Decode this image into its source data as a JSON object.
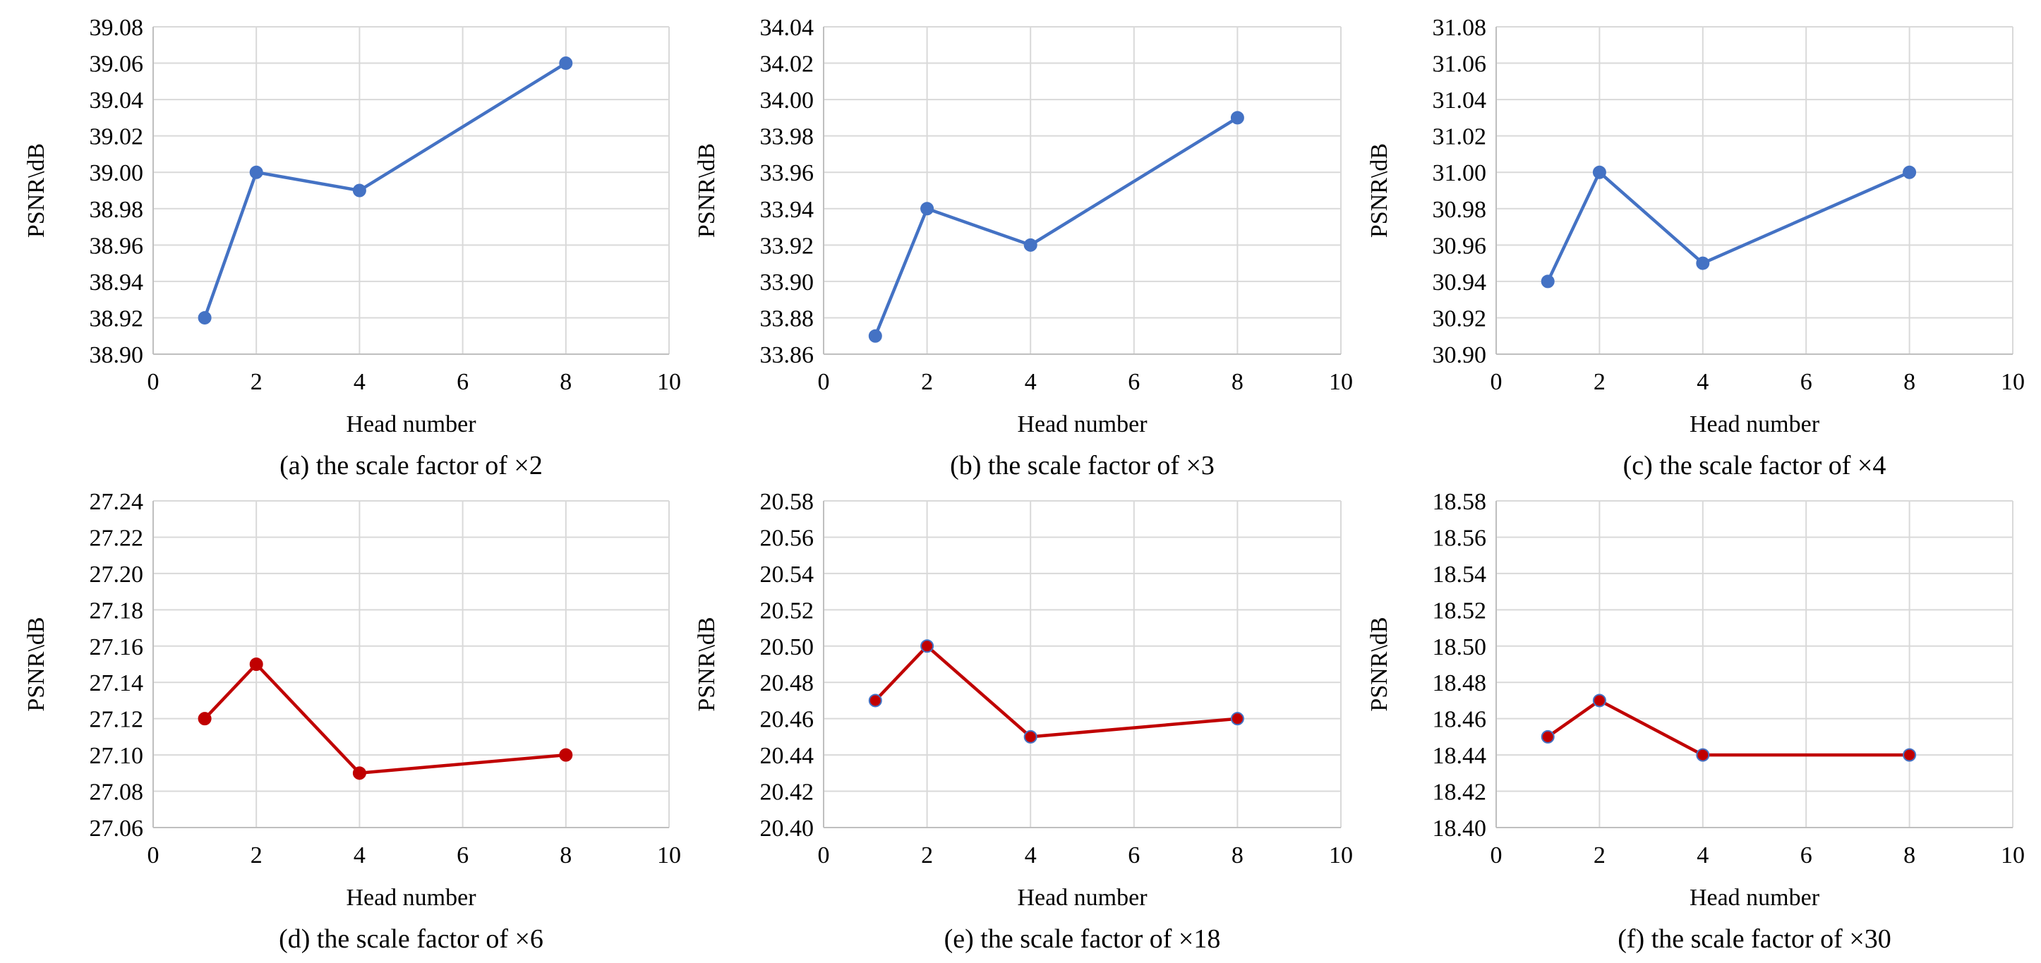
{
  "figure": {
    "background": "#ffffff",
    "panels_layout": "2 rows x 3 columns"
  },
  "chart_data": [
    {
      "type": "line",
      "caption": "(a)  the scale factor of ×2",
      "xlabel": "Head number",
      "ylabel": "PSNR\\dB",
      "xlim": [
        0,
        10
      ],
      "x_ticks": [
        "0",
        "2",
        "4",
        "6",
        "8",
        "10"
      ],
      "ylim": [
        38.9,
        39.08
      ],
      "y_ticks": [
        "38.90",
        "38.92",
        "38.94",
        "38.96",
        "38.98",
        "39.00",
        "39.02",
        "39.04",
        "39.06",
        "39.08"
      ],
      "grid": true,
      "color": "#4472c4",
      "series": [
        {
          "x": [
            1,
            2,
            4,
            8
          ],
          "y": [
            38.92,
            39.0,
            38.99,
            39.06
          ]
        }
      ]
    },
    {
      "type": "line",
      "caption": "(b)  the scale factor of ×3",
      "xlabel": "Head number",
      "ylabel": "PSNR\\dB",
      "xlim": [
        0,
        10
      ],
      "x_ticks": [
        "0",
        "2",
        "4",
        "6",
        "8",
        "10"
      ],
      "ylim": [
        33.86,
        34.04
      ],
      "y_ticks": [
        "33.86",
        "33.88",
        "33.90",
        "33.92",
        "33.94",
        "33.96",
        "33.98",
        "34.00",
        "34.02",
        "34.04"
      ],
      "grid": true,
      "color": "#4472c4",
      "series": [
        {
          "x": [
            1,
            2,
            4,
            8
          ],
          "y": [
            33.87,
            33.94,
            33.92,
            33.99
          ]
        }
      ]
    },
    {
      "type": "line",
      "caption": "(c)  the scale factor of ×4",
      "xlabel": "Head number",
      "ylabel": "PSNR\\dB",
      "xlim": [
        0,
        10
      ],
      "x_ticks": [
        "0",
        "2",
        "4",
        "6",
        "8",
        "10"
      ],
      "ylim": [
        30.9,
        31.08
      ],
      "y_ticks": [
        "30.90",
        "30.92",
        "30.94",
        "30.96",
        "30.98",
        "31.00",
        "31.02",
        "31.04",
        "31.06",
        "31.08"
      ],
      "grid": true,
      "color": "#4472c4",
      "series": [
        {
          "x": [
            1,
            2,
            4,
            8
          ],
          "y": [
            30.94,
            31.0,
            30.95,
            31.0
          ]
        }
      ]
    },
    {
      "type": "line",
      "caption": "(d)  the scale factor of ×6",
      "xlabel": "Head number",
      "ylabel": "PSNR\\dB",
      "xlim": [
        0,
        10
      ],
      "x_ticks": [
        "0",
        "2",
        "4",
        "6",
        "8",
        "10"
      ],
      "ylim": [
        27.06,
        27.24
      ],
      "y_ticks": [
        "27.06",
        "27.08",
        "27.10",
        "27.12",
        "27.14",
        "27.16",
        "27.18",
        "27.20",
        "27.22",
        "27.24"
      ],
      "grid": true,
      "color": "#c00000",
      "series": [
        {
          "x": [
            1,
            2,
            4,
            8
          ],
          "y": [
            27.12,
            27.15,
            27.09,
            27.1
          ]
        }
      ]
    },
    {
      "type": "line",
      "caption": "(e)  the scale factor of ×18",
      "xlabel": "Head number",
      "ylabel": "PSNR\\dB",
      "xlim": [
        0,
        10
      ],
      "x_ticks": [
        "0",
        "2",
        "4",
        "6",
        "8",
        "10"
      ],
      "ylim": [
        20.4,
        20.58
      ],
      "y_ticks": [
        "20.40",
        "20.42",
        "20.44",
        "20.46",
        "20.48",
        "20.50",
        "20.52",
        "20.54",
        "20.56",
        "20.58"
      ],
      "grid": true,
      "color": "#c00000",
      "marker_edge_color": "#4472c4",
      "series": [
        {
          "x": [
            1,
            2,
            4,
            8
          ],
          "y": [
            20.47,
            20.5,
            20.45,
            20.46
          ]
        }
      ]
    },
    {
      "type": "line",
      "caption": "(f)  the scale factor of ×30",
      "xlabel": "Head number",
      "ylabel": "PSNR\\dB",
      "xlim": [
        0,
        10
      ],
      "x_ticks": [
        "0",
        "2",
        "4",
        "6",
        "8",
        "10"
      ],
      "ylim": [
        18.4,
        18.58
      ],
      "y_ticks": [
        "18.40",
        "18.42",
        "18.44",
        "18.46",
        "18.48",
        "18.50",
        "18.52",
        "18.54",
        "18.56",
        "18.58"
      ],
      "grid": true,
      "color": "#c00000",
      "marker_edge_color": "#4472c4",
      "series": [
        {
          "x": [
            1,
            2,
            4,
            8
          ],
          "y": [
            18.45,
            18.47,
            18.44,
            18.44
          ]
        }
      ]
    }
  ]
}
